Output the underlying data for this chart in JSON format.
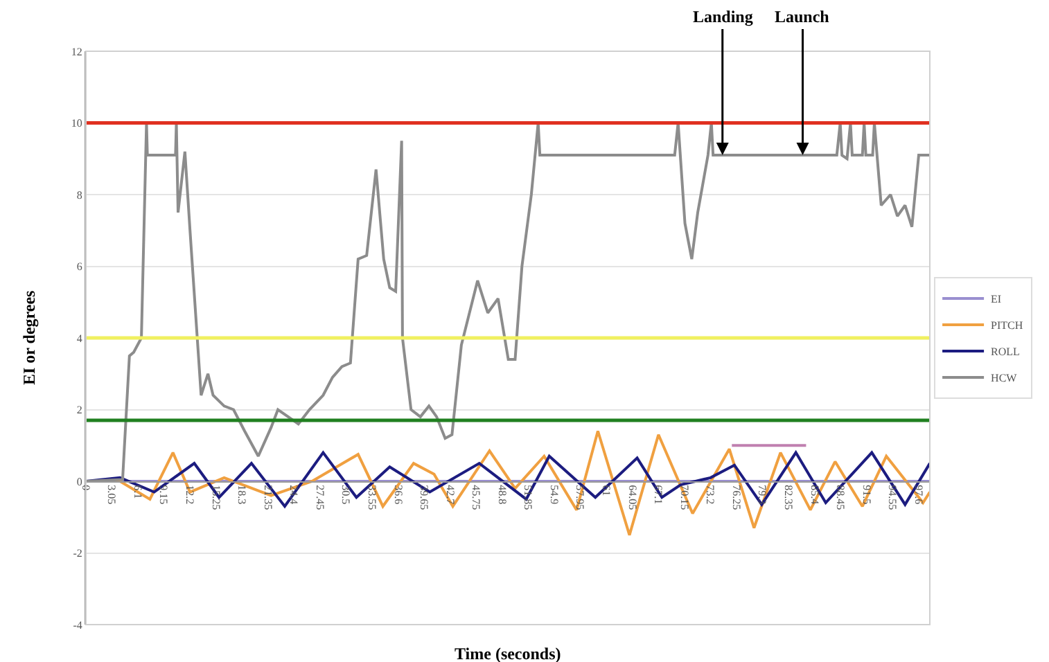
{
  "chart_data": {
    "type": "line",
    "xlabel": "Time (seconds)",
    "ylabel": "EI or degrees",
    "xlim": [
      0,
      98.9
    ],
    "ylim": [
      -4,
      12
    ],
    "yticks": [
      -4,
      -2,
      0,
      2,
      4,
      6,
      8,
      10,
      12
    ],
    "xticks": [
      0,
      3.05,
      6.1,
      9.15,
      {
        "value": 12.2,
        "label": "12.2"
      },
      15.25,
      18.3,
      21.35,
      24.4,
      27.45,
      30.5,
      33.55,
      36.6,
      39.65,
      42.7,
      45.75,
      48.8,
      51.85,
      54.9,
      57.95,
      61,
      64.05,
      67.1,
      70.15,
      73.2,
      76.25,
      79.3,
      82.35,
      85.4,
      88.45,
      91.5,
      94.55,
      97.6
    ],
    "grid": "y",
    "legend": "right",
    "series": [
      {
        "name": "EI",
        "color": "#9a8fd0",
        "x": [
          0,
          98.9
        ],
        "values": [
          0,
          0
        ]
      },
      {
        "name": "PITCH",
        "color": "#f0a040",
        "x": [
          0,
          4,
          7.5,
          10.2,
          12.2,
          16.2,
          21.7,
          26.5,
          31.9,
          34.8,
          38.4,
          40.8,
          43.0,
          47.3,
          50.3,
          53.7,
          57.5,
          60.0,
          63.7,
          67.1,
          71.1,
          75.4,
          78.3,
          81.4,
          84.9,
          87.8,
          91.0,
          93.8,
          98.1,
          98.9
        ],
        "values": [
          0,
          0,
          -0.5,
          0.8,
          -0.3,
          0.1,
          -0.4,
          0.0,
          0.75,
          -0.7,
          0.5,
          0.2,
          -0.7,
          0.85,
          -0.2,
          0.7,
          -0.8,
          1.4,
          -1.5,
          1.3,
          -0.9,
          0.9,
          -1.3,
          0.8,
          -0.8,
          0.55,
          -0.7,
          0.7,
          -0.6,
          -0.3
        ]
      },
      {
        "name": "ROLL",
        "color": "#1c1c80",
        "x": [
          0,
          4,
          8,
          12.7,
          15.6,
          19.4,
          23.3,
          27.8,
          31.7,
          35.6,
          40.3,
          46.1,
          51.6,
          54.3,
          59.7,
          64.6,
          67.5,
          69.7,
          73.2,
          76,
          79.2,
          83.2,
          86.7,
          92.1,
          96,
          98.9
        ],
        "values": [
          0,
          0.1,
          -0.3,
          0.5,
          -0.45,
          0.5,
          -0.7,
          0.8,
          -0.45,
          0.4,
          -0.3,
          0.5,
          -0.5,
          0.7,
          -0.45,
          0.65,
          -0.45,
          -0.1,
          0.1,
          0.45,
          -0.65,
          0.8,
          -0.6,
          0.8,
          -0.65,
          0.5
        ]
      },
      {
        "name": "HCW",
        "color": "#8c8c8c",
        "x": [
          0,
          4.3,
          5.1,
          5.6,
          6.5,
          7.1,
          7.2,
          10.5,
          10.6,
          10.8,
          11.6,
          12.2,
          13.5,
          14.3,
          14.9,
          16.2,
          17.3,
          18.6,
          20.2,
          21.7,
          22.5,
          23.7,
          24.9,
          26.2,
          27.8,
          28.9,
          30.0,
          31.0,
          31.9,
          32.9,
          34.0,
          34.9,
          35.6,
          36.3,
          37.0,
          37.1,
          38.1,
          39.2,
          40.2,
          41.1,
          42.1,
          42.9,
          44.0,
          45.9,
          47.1,
          48.3,
          49.5,
          50.3,
          51.1,
          52.2,
          53.0,
          53.2,
          69.0,
          69.4,
          70.2,
          71.0,
          71.7,
          72.9,
          73.3,
          73.5,
          88.0,
          88.4,
          88.6,
          89.2,
          89.6,
          89.8,
          91.0,
          91.2,
          91.4,
          92.2,
          92.4,
          93.2,
          94.3,
          95.1,
          96.0,
          96.8,
          97.6,
          98.9
        ],
        "values": [
          0,
          0.05,
          3.5,
          3.6,
          4.0,
          10,
          9.1,
          9.1,
          10,
          7.5,
          9.2,
          7,
          2.4,
          3.0,
          2.4,
          2.1,
          2.0,
          1.4,
          0.7,
          1.5,
          2.0,
          1.8,
          1.6,
          2.0,
          2.4,
          2.9,
          3.2,
          3.3,
          6.2,
          6.3,
          8.7,
          6.2,
          5.4,
          5.3,
          9.5,
          4.0,
          2.0,
          1.8,
          2.1,
          1.8,
          1.2,
          1.3,
          3.8,
          5.6,
          4.7,
          5.1,
          3.4,
          3.4,
          6,
          8,
          10,
          9.1,
          9.1,
          10,
          7.2,
          6.2,
          7.5,
          9.1,
          10,
          9.1,
          9.1,
          10,
          9.1,
          9.0,
          10,
          9.1,
          9.1,
          10,
          9.1,
          9.1,
          10,
          7.7,
          8.0,
          7.4,
          7.7,
          7.1,
          9.1,
          9.1
        ]
      },
      {
        "color": "#c080b0",
        "x": [
          75.7,
          84.4
        ],
        "values": [
          1,
          1
        ]
      }
    ],
    "ref_lines": [
      {
        "axis": "y",
        "value": 10,
        "color": "#e03020"
      },
      {
        "axis": "y",
        "value": 4,
        "color": "#f0f060"
      },
      {
        "axis": "y",
        "value": 1.7,
        "color": "#208020"
      }
    ],
    "annotations": [
      {
        "text": "Landing",
        "x": 74.6,
        "y": 9.1
      },
      {
        "text": "Launch",
        "x": 84.0,
        "y": 9.1
      }
    ]
  }
}
